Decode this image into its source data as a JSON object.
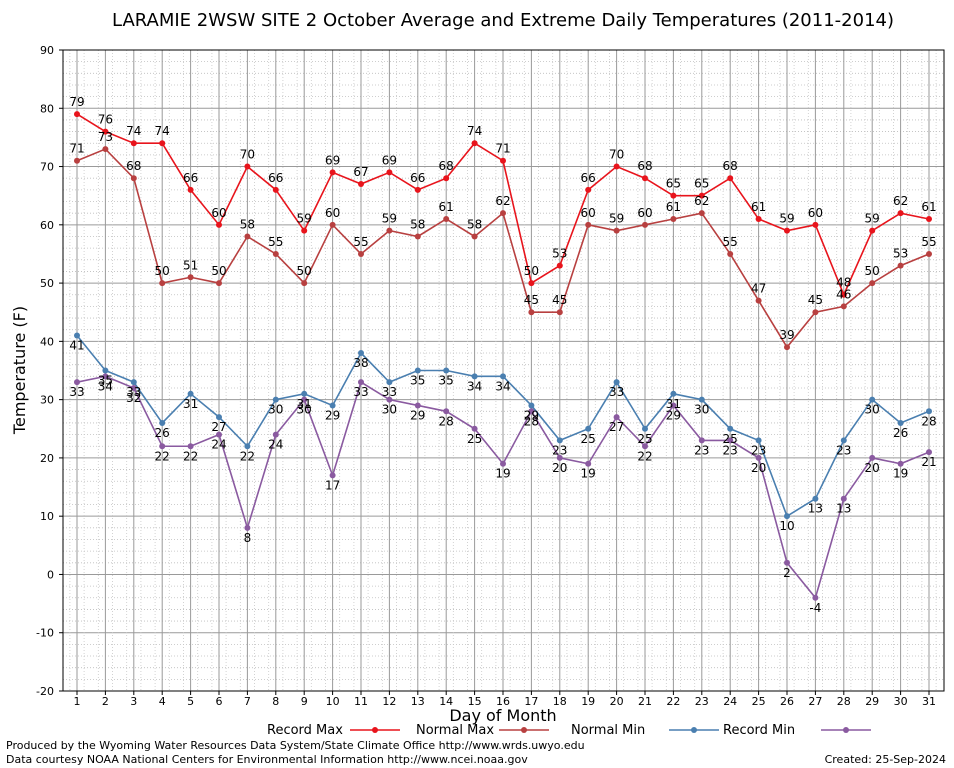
{
  "chart_data": {
    "type": "line",
    "title": "LARAMIE 2WSW SITE 2 October Average and Extreme Daily Temperatures (2011-2014)",
    "xlabel": "Day of Month",
    "ylabel": "Temperature (F)",
    "ylim": [
      -20,
      90
    ],
    "yticks": [
      -20,
      -10,
      0,
      10,
      20,
      30,
      40,
      50,
      60,
      70,
      80,
      90
    ],
    "x": [
      1,
      2,
      3,
      4,
      5,
      6,
      7,
      8,
      9,
      10,
      11,
      12,
      13,
      14,
      15,
      16,
      17,
      18,
      19,
      20,
      21,
      22,
      23,
      24,
      25,
      26,
      27,
      28,
      29,
      30,
      31
    ],
    "grid": true,
    "legend_position": "bottom",
    "series": [
      {
        "name": "Record Max",
        "color": "#e8141c",
        "values": [
          79,
          76,
          74,
          74,
          66,
          60,
          70,
          66,
          59,
          69,
          67,
          69,
          66,
          68,
          74,
          71,
          50,
          53,
          66,
          70,
          68,
          65,
          65,
          68,
          61,
          59,
          60,
          48,
          59,
          62,
          61
        ]
      },
      {
        "name": "Normal Max",
        "color": "#b84040",
        "values": [
          71,
          73,
          68,
          50,
          51,
          50,
          58,
          55,
          50,
          60,
          55,
          59,
          58,
          61,
          58,
          62,
          45,
          45,
          60,
          59,
          60,
          61,
          62,
          55,
          47,
          39,
          45,
          46,
          50,
          53,
          55
        ]
      },
      {
        "name": "Normal Min",
        "color": "#4a7fb0",
        "values": [
          41,
          35,
          33,
          26,
          31,
          27,
          22,
          30,
          31,
          29,
          38,
          33,
          35,
          35,
          34,
          34,
          29,
          23,
          25,
          33,
          25,
          31,
          30,
          25,
          23,
          10,
          13,
          23,
          30,
          26,
          28
        ]
      },
      {
        "name": "Record Min",
        "color": "#8a5aa0",
        "values": [
          33,
          34,
          32,
          22,
          22,
          24,
          8,
          24,
          30,
          17,
          33,
          30,
          29,
          28,
          25,
          19,
          28,
          20,
          19,
          27,
          22,
          29,
          23,
          23,
          20,
          2,
          -4,
          13,
          20,
          19,
          21
        ]
      }
    ]
  },
  "footer": {
    "credit_line_1": "Produced by the Wyoming Water Resources Data System/State Climate Office http://www.wrds.uwyo.edu",
    "credit_line_2": "Data courtesy NOAA National Centers for Environmental Information http://www.ncei.noaa.gov",
    "created": "Created:  25-Sep-2024"
  }
}
